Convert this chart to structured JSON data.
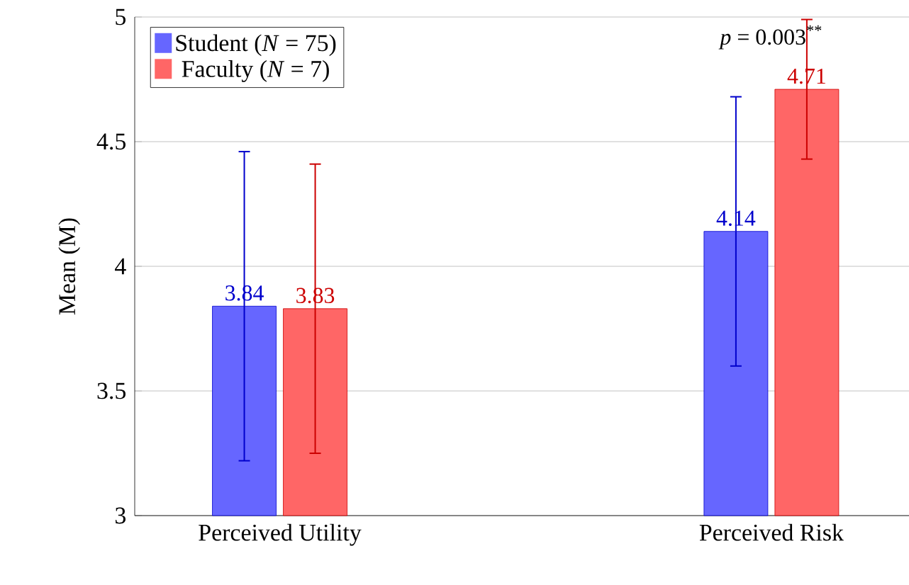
{
  "chart_data": {
    "type": "bar",
    "ylabel": "Mean (M)",
    "categories": [
      "Perceived Utility",
      "Perceived Risk"
    ],
    "series": [
      {
        "name": "Student (*N* = 75)",
        "color": "#6666ff",
        "values": [
          3.84,
          4.14
        ],
        "errors": [
          0.62,
          0.54
        ]
      },
      {
        "name": "Faculty (*N* = 7)",
        "color": "#ff6666",
        "values": [
          3.83,
          4.71
        ],
        "errors": [
          0.58,
          0.28
        ]
      }
    ],
    "ylim": [
      3,
      5
    ],
    "yticks": [
      3,
      3.5,
      4,
      4.5,
      5
    ],
    "grid": "y",
    "legend": "top left",
    "data_labels": true,
    "annotations": [
      "*p* = 0.003$^{**}$"
    ]
  }
}
